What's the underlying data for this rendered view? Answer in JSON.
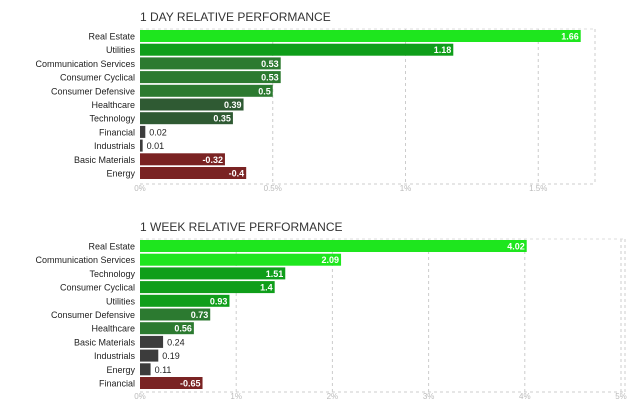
{
  "chart_data": [
    {
      "type": "bar",
      "orientation": "horizontal",
      "title": "1 DAY RELATIVE PERFORMANCE",
      "categories": [
        "Real Estate",
        "Utilities",
        "Communication Services",
        "Consumer Cyclical",
        "Consumer Defensive",
        "Healthcare",
        "Technology",
        "Financial",
        "Industrials",
        "Basic Materials",
        "Energy"
      ],
      "values": [
        1.66,
        1.18,
        0.53,
        0.53,
        0.5,
        0.39,
        0.35,
        0.02,
        0.01,
        -0.32,
        -0.4
      ],
      "value_labels": [
        "1.66",
        "1.18",
        "0.53",
        "0.53",
        "0.5",
        "0.39",
        "0.35",
        "0.02",
        "0.01",
        "-0.32",
        "-0.4"
      ],
      "xlim": [
        0,
        1.66
      ],
      "xticks": [
        0,
        0.5,
        1,
        1.5
      ],
      "xtick_labels": [
        "0%",
        "0.5%",
        "1%",
        "1.5%"
      ],
      "grid": true,
      "colors": {
        "strong_positive": "#1ee61e",
        "positive": "#0f9e1a",
        "moderate_positive": "#2c7a30",
        "weak_positive": "#2f5a33",
        "near_zero": "#3c3c3c",
        "negative": "#7a2323"
      }
    },
    {
      "type": "bar",
      "orientation": "horizontal",
      "title": "1 WEEK RELATIVE PERFORMANCE",
      "categories": [
        "Real Estate",
        "Communication Services",
        "Technology",
        "Consumer Cyclical",
        "Utilities",
        "Consumer Defensive",
        "Healthcare",
        "Basic Materials",
        "Industrials",
        "Energy",
        "Financial"
      ],
      "values": [
        4.02,
        2.09,
        1.51,
        1.4,
        0.93,
        0.73,
        0.56,
        0.24,
        0.19,
        0.11,
        -0.65
      ],
      "value_labels": [
        "4.02",
        "2.09",
        "1.51",
        "1.4",
        "0.93",
        "0.73",
        "0.56",
        "0.24",
        "0.19",
        "0.11",
        "-0.65"
      ],
      "xlim": [
        0,
        5
      ],
      "xticks": [
        0,
        1,
        2,
        3,
        4,
        5
      ],
      "xtick_labels": [
        "0%",
        "1%",
        "2%",
        "3%",
        "4%",
        "5%"
      ],
      "grid": true,
      "colors": {
        "strong_positive": "#1ee61e",
        "positive": "#0f9e1a",
        "moderate_positive": "#2c7a30",
        "weak_positive": "#2f5a33",
        "near_zero": "#3c3c3c",
        "negative": "#7a2323"
      }
    }
  ]
}
